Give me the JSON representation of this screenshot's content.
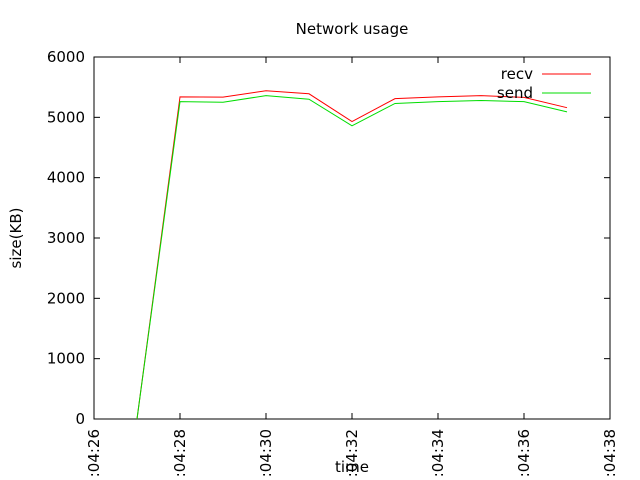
{
  "chart_data": {
    "type": "line",
    "title": "Network usage",
    "xlabel": "time",
    "ylabel": "size(KB)",
    "xlim": [
      "04:26",
      "04:38"
    ],
    "ylim": [
      0,
      6000
    ],
    "x_ticks": [
      ":04:26",
      ":04:28",
      ":04:30",
      ":04:32",
      ":04:34",
      ":04:36",
      ":04:38"
    ],
    "y_ticks": [
      "0",
      "1000",
      "2000",
      "3000",
      "4000",
      "5000",
      "6000"
    ],
    "x": [
      "04:27",
      "04:28",
      "04:29",
      "04:30",
      "04:31",
      "04:32",
      "04:33",
      "04:34",
      "04:35",
      "04:36",
      "04:37"
    ],
    "series": [
      {
        "name": "recv",
        "color": "#ff0000",
        "values": [
          0,
          5340,
          5335,
          5440,
          5390,
          4930,
          5310,
          5340,
          5360,
          5330,
          5160
        ]
      },
      {
        "name": "send",
        "color": "#00dd00",
        "values": [
          0,
          5260,
          5250,
          5360,
          5300,
          4860,
          5230,
          5260,
          5280,
          5260,
          5090
        ]
      }
    ],
    "legend_position": "top-right",
    "grid": false
  }
}
